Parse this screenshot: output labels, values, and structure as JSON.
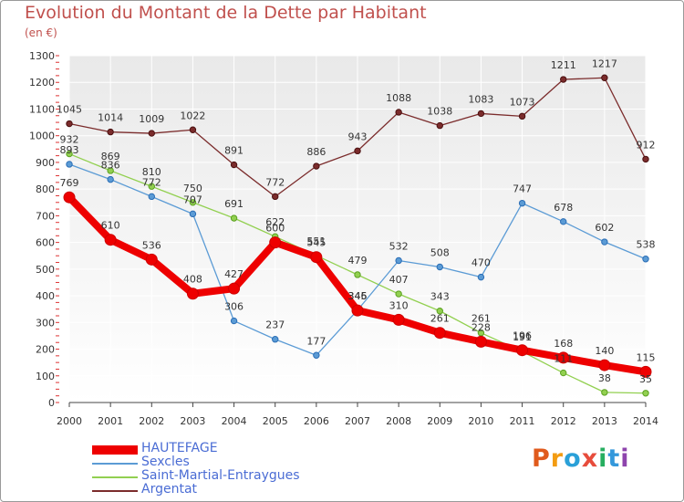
{
  "title": "Evolution du Montant de la Dette par Habitant",
  "unit": "(en €)",
  "logo": {
    "text": "Proxiti",
    "colors": [
      "#e05a1c",
      "#f39c12",
      "#2aa0d8",
      "#e74c3c",
      "#27ae60",
      "#3498db",
      "#8e44ad"
    ]
  },
  "chart_data": {
    "type": "line",
    "x": [
      2000,
      2001,
      2002,
      2003,
      2004,
      2005,
      2006,
      2007,
      2008,
      2009,
      2010,
      2011,
      2012,
      2013,
      2014
    ],
    "ylim": [
      0,
      1300
    ],
    "yticks": [
      0,
      100,
      200,
      300,
      400,
      500,
      600,
      700,
      800,
      900,
      1000,
      1100,
      1200,
      1300
    ],
    "grid": true,
    "legend_position": "bottom-left",
    "series": [
      {
        "name": "HAUTEFAGE",
        "color": "#ee0000",
        "values": [
          769,
          610,
          536,
          408,
          427,
          600,
          545,
          345,
          310,
          261,
          228,
          196,
          168,
          140,
          115
        ]
      },
      {
        "name": "Sexcles",
        "color": "#5b9bd5",
        "values": [
          893,
          836,
          772,
          707,
          306,
          237,
          177,
          346,
          532,
          508,
          470,
          747,
          678,
          602,
          538
        ]
      },
      {
        "name": "Saint-Martial-Entraygues",
        "color": "#92d050",
        "values": [
          932,
          869,
          810,
          750,
          691,
          622,
          551,
          479,
          407,
          343,
          261,
          191,
          111,
          38,
          35
        ]
      },
      {
        "name": "Argentat",
        "color": "#7b2c2c",
        "values": [
          1045,
          1014,
          1009,
          1022,
          891,
          772,
          886,
          943,
          1088,
          1038,
          1083,
          1073,
          1211,
          1217,
          912
        ]
      }
    ]
  }
}
